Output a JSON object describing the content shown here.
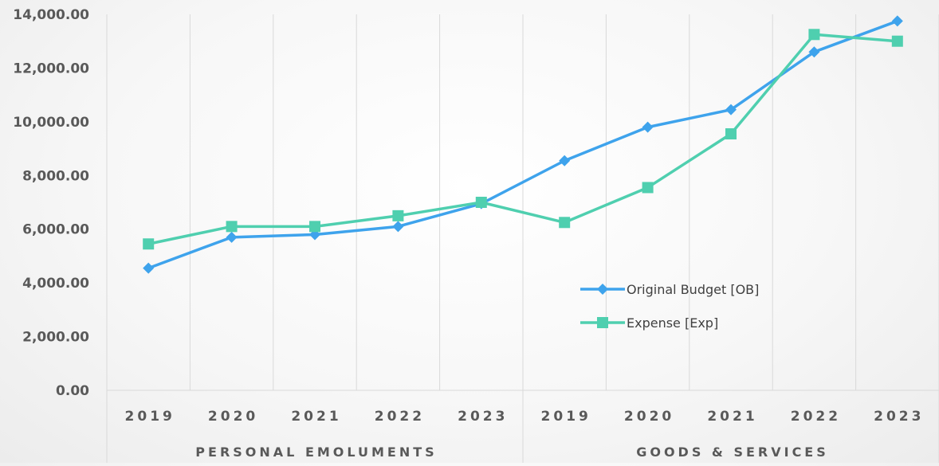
{
  "chart_data": {
    "type": "line",
    "title": "",
    "xlabel": "",
    "ylabel": "",
    "ylim": [
      0,
      14000
    ],
    "y_ticks": [
      "0.00",
      "2,000.00",
      "4,000.00",
      "6,000.00",
      "8,000.00",
      "10,000.00",
      "12,000.00",
      "14,000.00"
    ],
    "y_tick_values": [
      0,
      2000,
      4000,
      6000,
      8000,
      10000,
      12000,
      14000
    ],
    "groups": [
      {
        "label": "PERSONAL EMOLUMENTS",
        "categories": [
          "2019",
          "2020",
          "2021",
          "2022",
          "2023"
        ]
      },
      {
        "label": "GOODS & SERVICES",
        "categories": [
          "2019",
          "2020",
          "2021",
          "2022",
          "2023"
        ]
      }
    ],
    "categories": [
      "2019",
      "2020",
      "2021",
      "2022",
      "2023",
      "2019",
      "2020",
      "2021",
      "2022",
      "2023"
    ],
    "grid": "vertical",
    "legend_position": "right",
    "series": [
      {
        "name": "Original Budget [OB]",
        "color": "#3EA3EC",
        "marker": "diamond",
        "values": [
          4550,
          5700,
          5800,
          6100,
          6950,
          8550,
          9800,
          10450,
          12600,
          13750
        ]
      },
      {
        "name": "Expense [Exp]",
        "color": "#4FCFAF",
        "marker": "square",
        "values": [
          5450,
          6100,
          6100,
          6500,
          7000,
          6250,
          7550,
          9550,
          13250,
          13000
        ]
      }
    ]
  }
}
